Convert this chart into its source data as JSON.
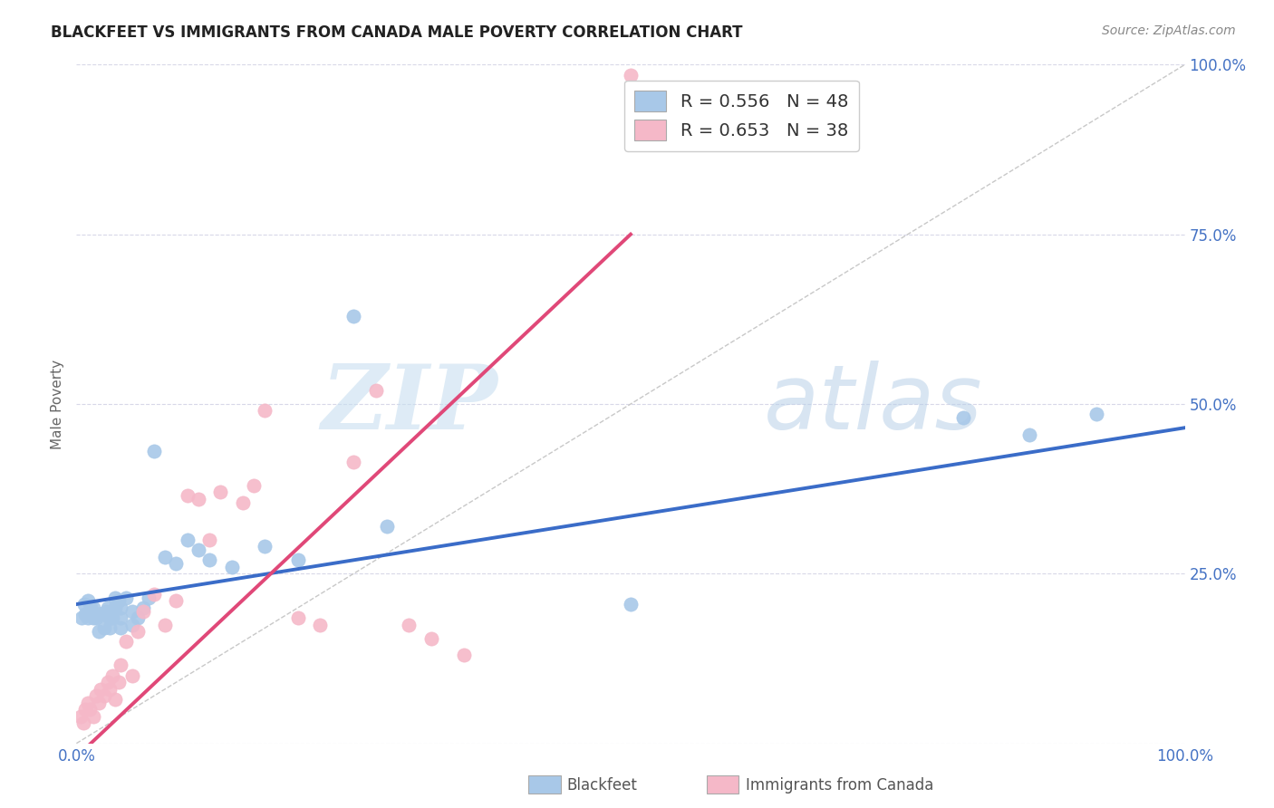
{
  "title": "BLACKFEET VS IMMIGRANTS FROM CANADA MALE POVERTY CORRELATION CHART",
  "source": "Source: ZipAtlas.com",
  "ylabel": "Male Poverty",
  "xlim": [
    0,
    1
  ],
  "ylim": [
    0,
    1
  ],
  "xtick_pos": [
    0,
    0.25,
    0.5,
    0.75,
    1.0
  ],
  "xticklabels": [
    "0.0%",
    "",
    "",
    "",
    "100.0%"
  ],
  "ytick_pos": [
    0,
    0.25,
    0.5,
    0.75,
    1.0
  ],
  "yticklabels_right": [
    "",
    "25.0%",
    "50.0%",
    "75.0%",
    "100.0%"
  ],
  "watermark_zip": "ZIP",
  "watermark_atlas": "atlas",
  "legend_label_blue": "R = 0.556   N = 48",
  "legend_label_pink": "R = 0.653   N = 38",
  "blue_scatter_color": "#a8c8e8",
  "pink_scatter_color": "#f5b8c8",
  "blue_line_color": "#3a6cc8",
  "pink_line_color": "#e04878",
  "diagonal_color": "#c8c8c8",
  "blue_legend_color": "#a8c8e8",
  "pink_legend_color": "#f5b8c8",
  "background_color": "#ffffff",
  "grid_color": "#d8d8e8",
  "title_color": "#222222",
  "source_color": "#888888",
  "tick_color": "#4472c4",
  "ylabel_color": "#666666",
  "watermark_color_zip": "#c8dff0",
  "watermark_color_atlas": "#b8d0e8",
  "blackfeet_x": [
    0.005,
    0.007,
    0.008,
    0.01,
    0.01,
    0.012,
    0.013,
    0.015,
    0.015,
    0.018,
    0.02,
    0.02,
    0.022,
    0.025,
    0.025,
    0.027,
    0.028,
    0.03,
    0.03,
    0.03,
    0.032,
    0.035,
    0.035,
    0.038,
    0.04,
    0.04,
    0.04,
    0.045,
    0.05,
    0.05,
    0.055,
    0.06,
    0.065,
    0.07,
    0.08,
    0.09,
    0.1,
    0.11,
    0.12,
    0.14,
    0.17,
    0.2,
    0.25,
    0.28,
    0.5,
    0.8,
    0.86,
    0.92
  ],
  "blackfeet_y": [
    0.185,
    0.205,
    0.19,
    0.21,
    0.185,
    0.19,
    0.2,
    0.185,
    0.2,
    0.185,
    0.165,
    0.19,
    0.19,
    0.17,
    0.19,
    0.195,
    0.2,
    0.17,
    0.185,
    0.19,
    0.185,
    0.2,
    0.215,
    0.21,
    0.17,
    0.185,
    0.2,
    0.215,
    0.175,
    0.195,
    0.185,
    0.2,
    0.215,
    0.43,
    0.275,
    0.265,
    0.3,
    0.285,
    0.27,
    0.26,
    0.29,
    0.27,
    0.63,
    0.32,
    0.205,
    0.48,
    0.455,
    0.485
  ],
  "canada_x": [
    0.004,
    0.006,
    0.008,
    0.01,
    0.012,
    0.015,
    0.018,
    0.02,
    0.022,
    0.025,
    0.028,
    0.03,
    0.032,
    0.035,
    0.038,
    0.04,
    0.045,
    0.05,
    0.055,
    0.06,
    0.07,
    0.08,
    0.09,
    0.1,
    0.11,
    0.12,
    0.13,
    0.15,
    0.16,
    0.17,
    0.2,
    0.22,
    0.25,
    0.27,
    0.3,
    0.32,
    0.35,
    0.5
  ],
  "canada_y": [
    0.04,
    0.03,
    0.05,
    0.06,
    0.05,
    0.04,
    0.07,
    0.06,
    0.08,
    0.07,
    0.09,
    0.08,
    0.1,
    0.065,
    0.09,
    0.115,
    0.15,
    0.1,
    0.165,
    0.195,
    0.22,
    0.175,
    0.21,
    0.365,
    0.36,
    0.3,
    0.37,
    0.355,
    0.38,
    0.49,
    0.185,
    0.175,
    0.415,
    0.52,
    0.175,
    0.155,
    0.13,
    0.985
  ],
  "blue_line_x0": 0.0,
  "blue_line_y0": 0.205,
  "blue_line_x1": 1.0,
  "blue_line_y1": 0.465,
  "pink_line_x0": 0.0,
  "pink_line_y0": -0.02,
  "pink_line_x1": 0.5,
  "pink_line_y1": 0.75
}
